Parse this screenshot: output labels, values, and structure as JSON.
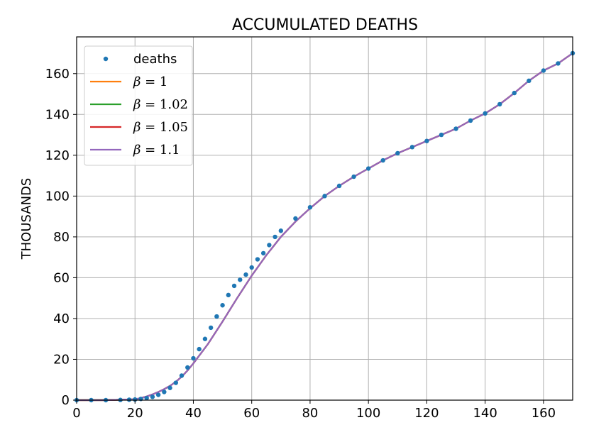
{
  "chart_data": {
    "type": "line",
    "title": "ACCUMULATED DEATHS",
    "xlabel": "",
    "ylabel": "THOUSANDS",
    "xlim": [
      0,
      170
    ],
    "ylim": [
      0,
      178
    ],
    "x_ticks": [
      0,
      20,
      40,
      60,
      80,
      100,
      120,
      140,
      160
    ],
    "y_ticks": [
      0,
      20,
      40,
      60,
      80,
      100,
      120,
      140,
      160
    ],
    "grid": true,
    "legend_position": "top-left",
    "scatter": {
      "name": "deaths",
      "color": "#1f77b4",
      "x": [
        0,
        5,
        10,
        15,
        18,
        20,
        22,
        24,
        26,
        28,
        30,
        32,
        34,
        36,
        38,
        40,
        42,
        44,
        46,
        48,
        50,
        52,
        54,
        56,
        58,
        60,
        62,
        64,
        66,
        68,
        70,
        75,
        80,
        85,
        90,
        95,
        100,
        105,
        110,
        115,
        120,
        125,
        130,
        135,
        140,
        145,
        150,
        155,
        160,
        165,
        170
      ],
      "y": [
        0,
        0,
        0,
        0.1,
        0.2,
        0.3,
        0.6,
        1.0,
        1.6,
        2.6,
        4.0,
        6.0,
        8.5,
        12.0,
        16.0,
        20.5,
        25.0,
        30.0,
        35.5,
        41.0,
        46.5,
        51.5,
        56.0,
        59.0,
        61.5,
        65.0,
        69.0,
        72.0,
        76.0,
        80.0,
        83.0,
        89.0,
        94.5,
        100.0,
        105.0,
        109.5,
        113.5,
        117.5,
        121.0,
        124.0,
        127.0,
        130.0,
        133.0,
        137.0,
        140.5,
        145.0,
        150.5,
        156.5,
        161.5,
        165.0,
        170.0
      ]
    },
    "series": [
      {
        "name": "β = 1",
        "label_symbol": "β",
        "label_value": "1",
        "color": "#ff7f0e",
        "x": [
          0,
          10,
          20,
          22,
          24,
          26,
          28,
          30,
          32,
          34,
          36,
          38,
          40,
          45,
          50,
          55,
          60,
          65,
          70,
          75,
          80,
          85,
          90,
          95,
          100,
          105,
          110,
          115,
          120,
          125,
          130,
          135,
          140,
          145,
          150,
          155,
          160,
          165,
          170
        ],
        "y": [
          0,
          0,
          0.4,
          1.0,
          1.8,
          2.8,
          4.0,
          5.4,
          7.0,
          9.0,
          11.5,
          14.5,
          18.0,
          27.5,
          38.5,
          50.0,
          61.0,
          71.0,
          80.0,
          87.5,
          94.0,
          100.0,
          105.0,
          109.5,
          113.5,
          117.5,
          121.0,
          124.0,
          127.0,
          130.0,
          133.0,
          137.0,
          140.5,
          145.0,
          150.5,
          156.5,
          161.5,
          165.0,
          170.0
        ]
      },
      {
        "name": "β = 1.02",
        "label_symbol": "β",
        "label_value": "1.02",
        "color": "#2ca02c",
        "x": [
          0,
          10,
          20,
          22,
          24,
          26,
          28,
          30,
          32,
          34,
          36,
          38,
          40,
          45,
          50,
          55,
          60,
          65,
          70,
          75,
          80,
          85,
          90,
          95,
          100,
          105,
          110,
          115,
          120,
          125,
          130,
          135,
          140,
          145,
          150,
          155,
          160,
          165,
          170
        ],
        "y": [
          0,
          0,
          0.4,
          1.0,
          1.8,
          2.8,
          4.0,
          5.4,
          7.0,
          9.0,
          11.5,
          14.5,
          18.0,
          27.5,
          38.5,
          50.0,
          61.0,
          71.0,
          80.0,
          87.5,
          94.0,
          100.0,
          105.0,
          109.5,
          113.5,
          117.5,
          121.0,
          124.0,
          127.0,
          130.0,
          133.0,
          137.0,
          140.5,
          145.0,
          150.5,
          156.5,
          161.5,
          165.0,
          170.0
        ]
      },
      {
        "name": "β = 1.05",
        "label_symbol": "β",
        "label_value": "1.05",
        "color": "#d62728",
        "x": [
          0,
          10,
          20,
          22,
          24,
          26,
          28,
          30,
          32,
          34,
          36,
          38,
          40,
          45,
          50,
          55,
          60,
          65,
          70,
          75,
          80,
          85,
          90,
          95,
          100,
          105,
          110,
          115,
          120,
          125,
          130,
          135,
          140,
          145,
          150,
          155,
          160,
          165,
          170
        ],
        "y": [
          0,
          0,
          0.4,
          1.0,
          1.8,
          2.8,
          4.0,
          5.4,
          7.0,
          9.0,
          11.5,
          14.5,
          18.0,
          27.5,
          38.5,
          50.0,
          61.0,
          71.0,
          80.0,
          87.5,
          94.0,
          100.0,
          105.0,
          109.5,
          113.5,
          117.5,
          121.0,
          124.0,
          127.0,
          130.0,
          133.0,
          137.0,
          140.5,
          145.0,
          150.5,
          156.5,
          161.5,
          165.0,
          170.0
        ]
      },
      {
        "name": "β = 1.1",
        "label_symbol": "β",
        "label_value": "1.1",
        "color": "#9467bd",
        "x": [
          0,
          10,
          20,
          22,
          24,
          26,
          28,
          30,
          32,
          34,
          36,
          38,
          40,
          45,
          50,
          55,
          60,
          65,
          70,
          75,
          80,
          85,
          90,
          95,
          100,
          105,
          110,
          115,
          120,
          125,
          130,
          135,
          140,
          145,
          150,
          155,
          160,
          165,
          170
        ],
        "y": [
          0,
          0,
          0.4,
          1.0,
          1.8,
          2.8,
          4.0,
          5.4,
          7.0,
          9.0,
          11.5,
          14.5,
          18.0,
          27.5,
          38.5,
          50.0,
          61.0,
          71.0,
          80.0,
          87.5,
          94.0,
          100.0,
          105.0,
          109.5,
          113.5,
          117.5,
          121.0,
          124.0,
          127.0,
          130.0,
          133.0,
          137.0,
          140.5,
          145.0,
          150.5,
          156.5,
          161.5,
          165.0,
          170.0
        ]
      }
    ]
  }
}
